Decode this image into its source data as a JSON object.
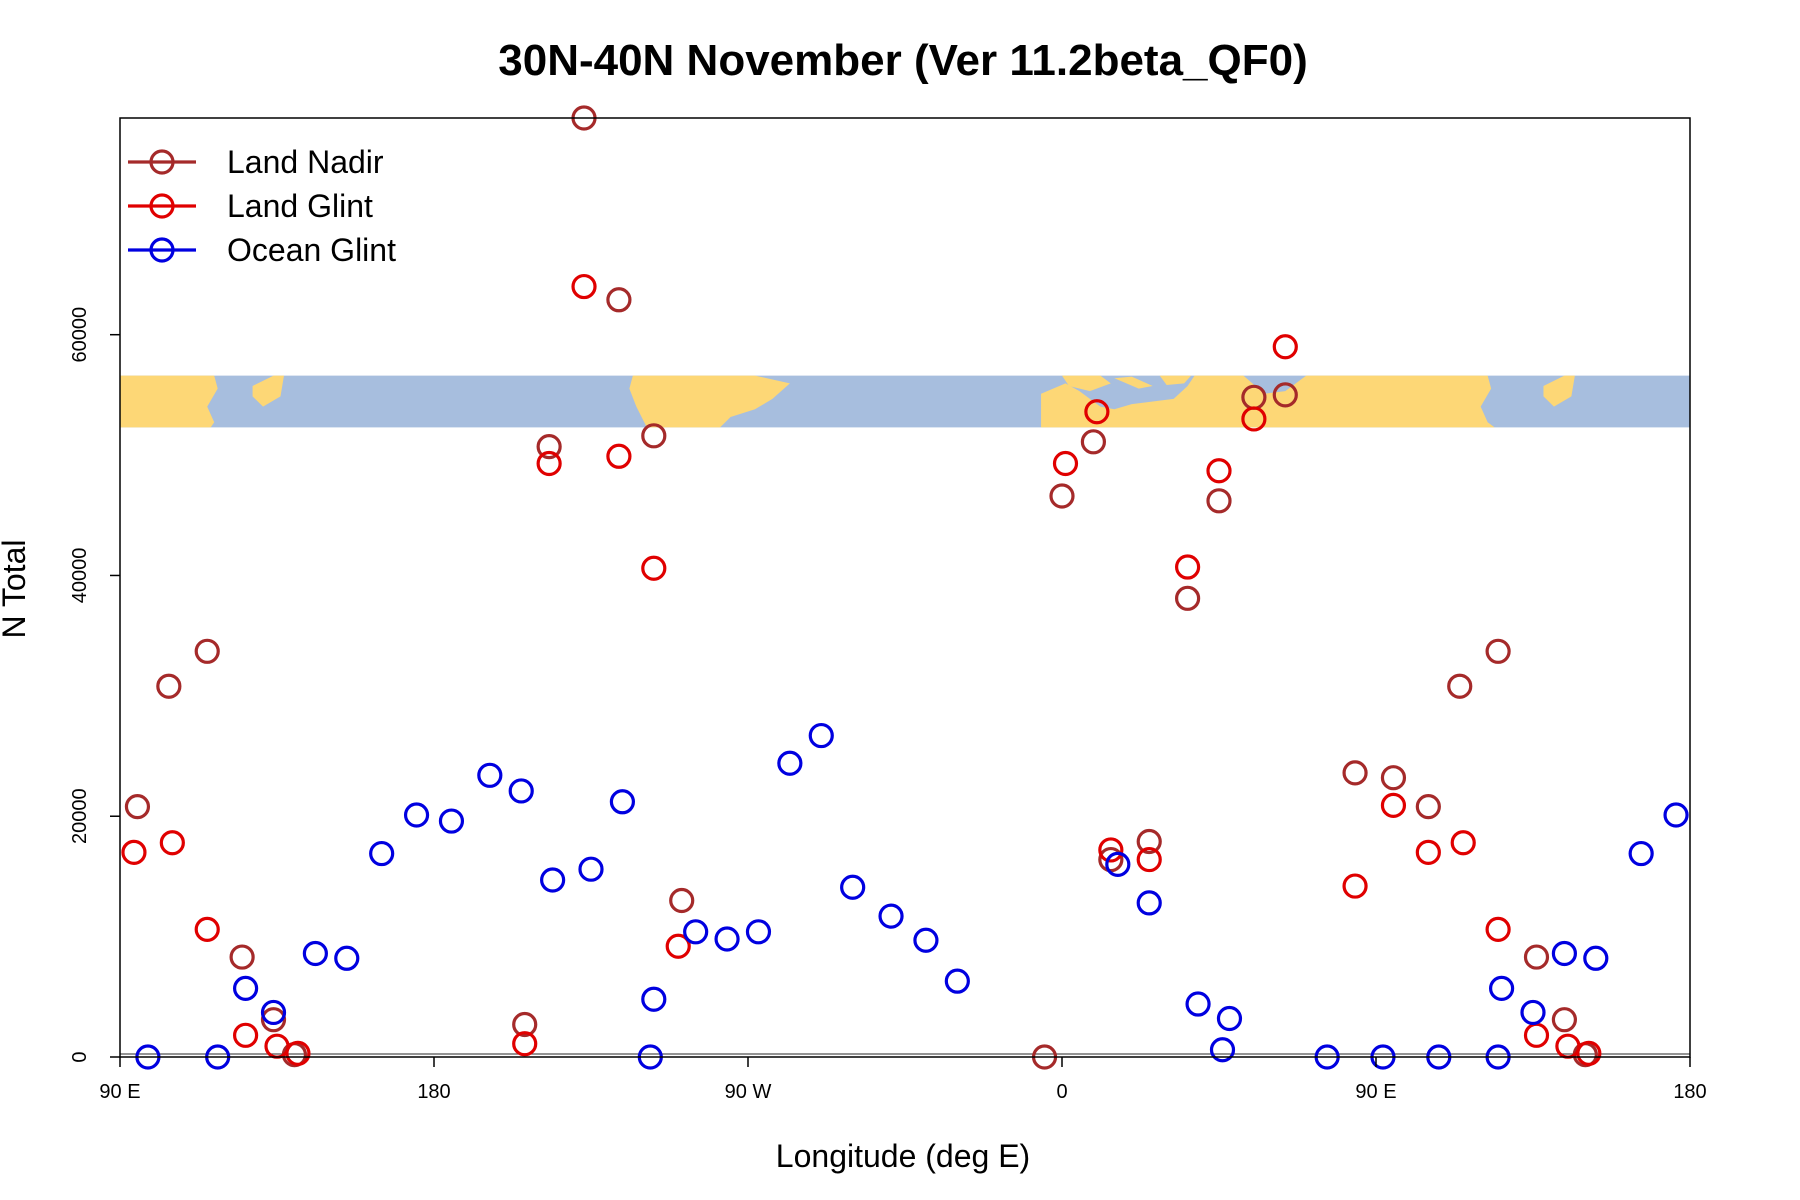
{
  "chart_data": {
    "type": "scatter",
    "title": "30N-40N November (Ver 11.2beta_QF0)",
    "xlabel": "Longitude (deg E)",
    "ylabel": "N Total",
    "xlim": [
      90,
      540
    ],
    "ylim": [
      0,
      78000
    ],
    "x_ticks": [
      {
        "value": 90,
        "label": "90 E"
      },
      {
        "value": 180,
        "label": "180"
      },
      {
        "value": 270,
        "label": "90 W"
      },
      {
        "value": 360,
        "label": "0"
      },
      {
        "value": 450,
        "label": "90 E"
      },
      {
        "value": 540,
        "label": "180"
      }
    ],
    "y_ticks": [
      {
        "value": 0,
        "label": "0"
      },
      {
        "value": 20000,
        "label": "20000"
      },
      {
        "value": 40000,
        "label": "40000"
      },
      {
        "value": 60000,
        "label": "60000"
      }
    ],
    "legend_position": "top-left",
    "map_strip": {
      "y_range": [
        52300,
        56600
      ],
      "land_color": "#FDD776",
      "ocean_color": "#A7BEDE"
    },
    "series": [
      {
        "name": "Land Nadir",
        "color": "#A52A2A",
        "points": [
          [
            95,
            20800
          ],
          [
            104,
            30800
          ],
          [
            115,
            33700
          ],
          [
            125,
            8300
          ],
          [
            134,
            3100
          ],
          [
            140,
            200
          ],
          [
            206,
            2700
          ],
          [
            213,
            50700
          ],
          [
            223,
            78000
          ],
          [
            233,
            62900
          ],
          [
            243,
            51600
          ],
          [
            251,
            13000
          ],
          [
            355,
            0
          ],
          [
            360,
            46600
          ],
          [
            369,
            51100
          ],
          [
            374,
            16400
          ],
          [
            385,
            17900
          ],
          [
            396,
            38100
          ],
          [
            405,
            46200
          ],
          [
            415,
            54800
          ],
          [
            424,
            55000
          ],
          [
            444,
            23600
          ],
          [
            455,
            23200
          ],
          [
            465,
            20800
          ],
          [
            474,
            30800
          ],
          [
            485,
            33700
          ],
          [
            496,
            8300
          ],
          [
            504,
            3100
          ],
          [
            510,
            200
          ]
        ]
      },
      {
        "name": "Land Glint",
        "color": "#E00000",
        "points": [
          [
            94,
            17000
          ],
          [
            105,
            17800
          ],
          [
            115,
            10600
          ],
          [
            126,
            1800
          ],
          [
            135,
            900
          ],
          [
            141,
            300
          ],
          [
            206,
            1100
          ],
          [
            213,
            49300
          ],
          [
            223,
            64000
          ],
          [
            233,
            49900
          ],
          [
            243,
            40600
          ],
          [
            250,
            9200
          ],
          [
            361,
            49300
          ],
          [
            370,
            53600
          ],
          [
            374,
            17200
          ],
          [
            385,
            16400
          ],
          [
            396,
            40700
          ],
          [
            405,
            48700
          ],
          [
            415,
            53000
          ],
          [
            424,
            59000
          ],
          [
            444,
            14200
          ],
          [
            455,
            20900
          ],
          [
            465,
            17000
          ],
          [
            475,
            17800
          ],
          [
            485,
            10600
          ],
          [
            496,
            1800
          ],
          [
            505,
            900
          ],
          [
            511,
            300
          ]
        ]
      },
      {
        "name": "Ocean Glint",
        "color": "#0000E0",
        "points": [
          [
            98,
            0
          ],
          [
            118,
            0
          ],
          [
            126,
            5700
          ],
          [
            134,
            3700
          ],
          [
            146,
            8600
          ],
          [
            155,
            8200
          ],
          [
            165,
            16900
          ],
          [
            175,
            20100
          ],
          [
            185,
            19600
          ],
          [
            196,
            23400
          ],
          [
            205,
            22100
          ],
          [
            214,
            14700
          ],
          [
            225,
            15600
          ],
          [
            234,
            21200
          ],
          [
            243,
            4800
          ],
          [
            242,
            0
          ],
          [
            255,
            10400
          ],
          [
            264,
            9800
          ],
          [
            273,
            10400
          ],
          [
            282,
            24400
          ],
          [
            291,
            26700
          ],
          [
            300,
            14100
          ],
          [
            311,
            11700
          ],
          [
            321,
            9700
          ],
          [
            330,
            6300
          ],
          [
            376,
            16000
          ],
          [
            385,
            12800
          ],
          [
            399,
            4400
          ],
          [
            408,
            3200
          ],
          [
            406,
            600
          ],
          [
            436,
            0
          ],
          [
            452,
            0
          ],
          [
            468,
            0
          ],
          [
            485,
            0
          ],
          [
            486,
            5700
          ],
          [
            495,
            3700
          ],
          [
            504,
            8600
          ],
          [
            513,
            8200
          ],
          [
            526,
            16900
          ],
          [
            536,
            20100
          ]
        ]
      }
    ]
  }
}
